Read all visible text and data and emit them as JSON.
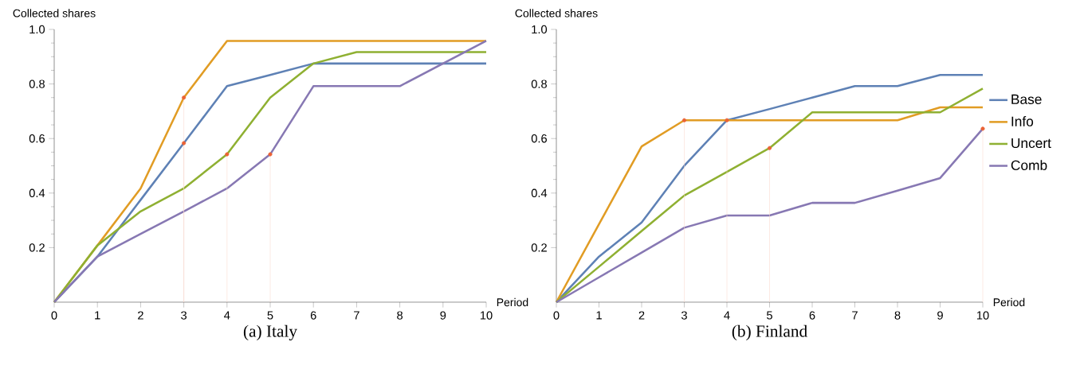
{
  "chart_data": [
    {
      "type": "line",
      "title": "(a) Italy",
      "xlabel": "Period",
      "ylabel": "Collected shares",
      "x": [
        0,
        1,
        2,
        3,
        4,
        5,
        6,
        7,
        8,
        9,
        10
      ],
      "series": [
        {
          "color": "#5e81b5",
          "values": [
            0,
            0.167,
            0.375,
            0.583,
            0.792,
            0.833,
            0.875,
            0.875,
            0.875,
            0.875,
            0.875
          ]
        },
        {
          "color": "#e19c24",
          "values": [
            0,
            0.208,
            0.417,
            0.75,
            0.958,
            0.958,
            0.958,
            0.958,
            0.958,
            0.958,
            0.958
          ]
        },
        {
          "color": "#8fb032",
          "values": [
            0,
            0.208,
            0.333,
            0.417,
            0.542,
            0.75,
            0.875,
            0.917,
            0.917,
            0.917,
            0.917
          ]
        },
        {
          "color": "#8778b3",
          "values": [
            0,
            0.167,
            0.25,
            0.333,
            0.417,
            0.542,
            0.792,
            0.792,
            0.792,
            0.875,
            0.958
          ]
        },
        {
          "type": "lollipop",
          "color": "#eb6235",
          "x": [
            3,
            3,
            4,
            5
          ],
          "values": [
            0.75,
            0.583,
            0.542,
            0.542
          ]
        }
      ],
      "xlim": [
        0,
        10
      ],
      "xticks": [
        0,
        1,
        2,
        3,
        4,
        5,
        6,
        7,
        8,
        9,
        10
      ],
      "ylim": [
        0,
        1
      ],
      "yticks": [
        0.2,
        0.4,
        0.6,
        0.8,
        {
          "value": 1,
          "label": "1.0"
        }
      ]
    },
    {
      "type": "line",
      "title": "(b) Finland",
      "xlabel": "Period",
      "ylabel": "Collected shares",
      "legend": "right",
      "x": [
        0,
        1,
        2,
        3,
        4,
        5,
        6,
        7,
        8,
        9,
        10
      ],
      "series": [
        {
          "name": "Base",
          "color": "#5e81b5",
          "values": [
            0,
            0.167,
            0.292,
            0.5,
            0.667,
            0.708,
            0.75,
            0.792,
            0.792,
            0.833,
            0.833
          ]
        },
        {
          "name": "Info",
          "color": "#e19c24",
          "values": [
            0,
            0.286,
            0.571,
            0.667,
            0.667,
            0.667,
            0.667,
            0.667,
            0.667,
            0.714,
            0.714
          ]
        },
        {
          "name": "Uncert",
          "color": "#8fb032",
          "values": [
            0,
            0.13,
            0.261,
            0.391,
            0.478,
            0.565,
            0.696,
            0.696,
            0.696,
            0.696,
            0.783
          ]
        },
        {
          "name": "Comb",
          "color": "#8778b3",
          "values": [
            0,
            0.091,
            0.182,
            0.273,
            0.318,
            0.318,
            0.364,
            0.364,
            0.409,
            0.455,
            0.636
          ]
        },
        {
          "type": "lollipop",
          "color": "#eb6235",
          "x": [
            3,
            4,
            5,
            10
          ],
          "values": [
            0.667,
            0.667,
            0.565,
            0.636
          ]
        }
      ],
      "xlim": [
        0,
        10
      ],
      "xticks": [
        0,
        1,
        2,
        3,
        4,
        5,
        6,
        7,
        8,
        9,
        10
      ],
      "ylim": [
        0,
        1
      ],
      "yticks": [
        0.2,
        0.4,
        0.6,
        0.8,
        {
          "value": 1,
          "label": "1.0"
        }
      ]
    }
  ]
}
